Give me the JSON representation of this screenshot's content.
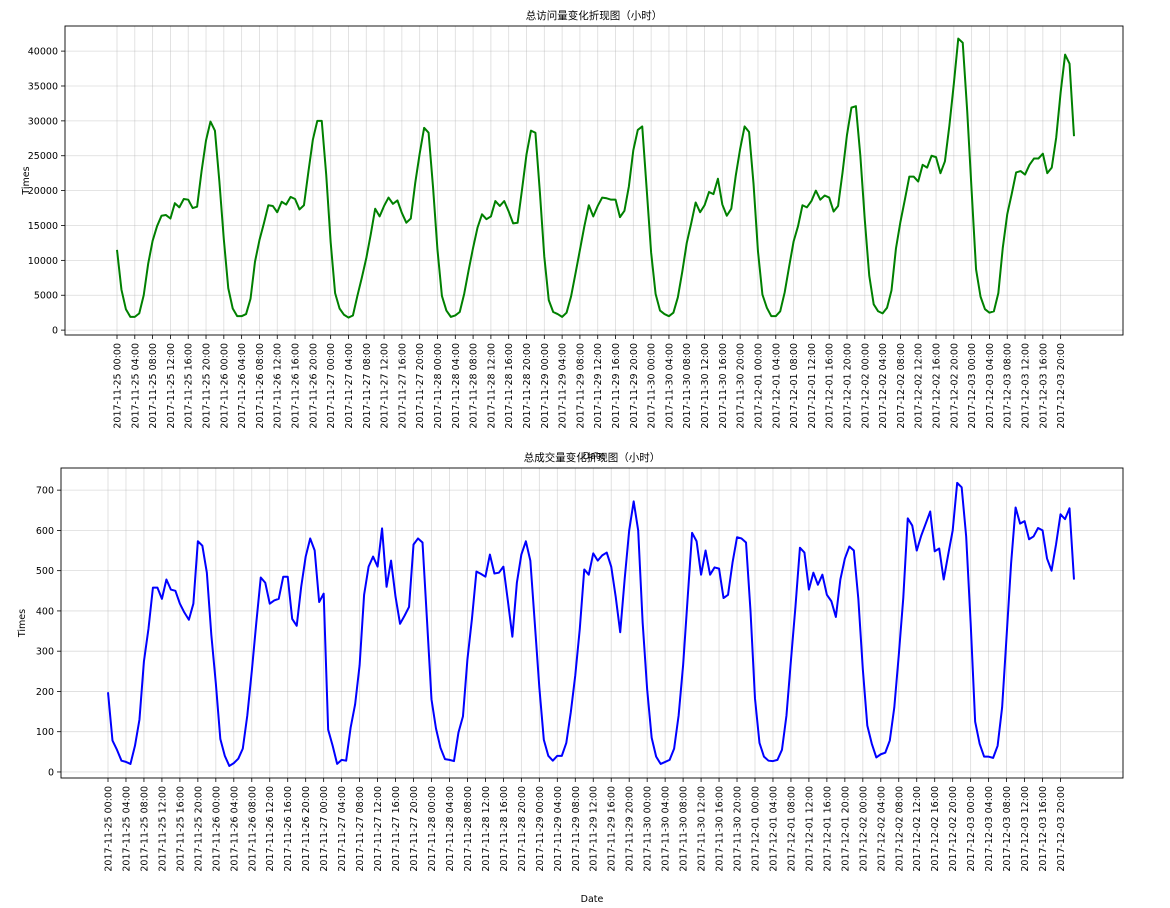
{
  "chart_data": [
    {
      "type": "line",
      "title": "总访问量变化折现图（小时）",
      "xlabel": "Date",
      "ylabel": "Times",
      "ylim": [
        -700,
        43600
      ],
      "yticks": [
        0,
        5000,
        10000,
        15000,
        20000,
        25000,
        30000,
        35000,
        40000
      ],
      "grid": true,
      "line_color": "#008000",
      "xtick_labels": [
        "2017-11-25 00:00",
        "2017-11-25 04:00",
        "2017-11-25 08:00",
        "2017-11-25 12:00",
        "2017-11-25 16:00",
        "2017-11-25 20:00",
        "2017-11-26 00:00",
        "2017-11-26 04:00",
        "2017-11-26 08:00",
        "2017-11-26 12:00",
        "2017-11-26 16:00",
        "2017-11-26 20:00",
        "2017-11-27 00:00",
        "2017-11-27 04:00",
        "2017-11-27 08:00",
        "2017-11-27 12:00",
        "2017-11-27 16:00",
        "2017-11-27 20:00",
        "2017-11-28 00:00",
        "2017-11-28 04:00",
        "2017-11-28 08:00",
        "2017-11-28 12:00",
        "2017-11-28 16:00",
        "2017-11-28 20:00",
        "2017-11-29 00:00",
        "2017-11-29 04:00",
        "2017-11-29 08:00",
        "2017-11-29 12:00",
        "2017-11-29 16:00",
        "2017-11-29 20:00",
        "2017-11-30 00:00",
        "2017-11-30 04:00",
        "2017-11-30 08:00",
        "2017-11-30 12:00",
        "2017-11-30 16:00",
        "2017-11-30 20:00",
        "2017-12-01 00:00",
        "2017-12-01 04:00",
        "2017-12-01 08:00",
        "2017-12-01 12:00",
        "2017-12-01 16:00",
        "2017-12-01 20:00",
        "2017-12-02 00:00",
        "2017-12-02 04:00",
        "2017-12-02 08:00",
        "2017-12-02 12:00",
        "2017-12-02 16:00",
        "2017-12-02 20:00",
        "2017-12-03 00:00",
        "2017-12-03 04:00",
        "2017-12-03 08:00",
        "2017-12-03 12:00",
        "2017-12-03 16:00",
        "2017-12-03 20:00"
      ],
      "series": [
        {
          "values": [
            11500,
            5800,
            3000,
            1900,
            1900,
            2400,
            5000,
            9500,
            12800,
            14900,
            16400,
            16500,
            16000,
            18200,
            17600,
            18800,
            18700,
            17500,
            17700,
            22800,
            27200,
            29900,
            28600,
            21300,
            13000,
            6000,
            3100,
            2000,
            2000,
            2300,
            4500,
            9800,
            12900,
            15300,
            17900,
            17800,
            16900,
            18400,
            18000,
            19100,
            18800,
            17300,
            17900,
            22700,
            27300,
            30000,
            30000,
            22300,
            12600,
            5300,
            3100,
            2200,
            1800,
            2100,
            4900,
            7500,
            10300,
            13700,
            17400,
            16300,
            17800,
            19000,
            18100,
            18600,
            16800,
            15400,
            16000,
            21100,
            25300,
            29000,
            28300,
            20500,
            11500,
            4900,
            2800,
            1900,
            2100,
            2600,
            5200,
            8600,
            11800,
            14700,
            16600,
            15900,
            16300,
            18500,
            17800,
            18500,
            17000,
            15300,
            15400,
            20200,
            25200,
            28600,
            28300,
            19800,
            10500,
            4300,
            2600,
            2300,
            1900,
            2500,
            4800,
            8100,
            11500,
            14900,
            17900,
            16300,
            17800,
            19000,
            18900,
            18700,
            18700,
            16200,
            17100,
            20600,
            25800,
            28700,
            29200,
            20200,
            11100,
            5200,
            2800,
            2300,
            2000,
            2500,
            4700,
            8400,
            12500,
            15300,
            18300,
            16900,
            17900,
            19800,
            19500,
            21700,
            18000,
            16400,
            17400,
            22100,
            26000,
            29200,
            28400,
            21000,
            11300,
            5100,
            3200,
            2000,
            2000,
            2700,
            5400,
            9100,
            12700,
            14900,
            17900,
            17600,
            18500,
            20000,
            18700,
            19300,
            19000,
            17000,
            17800,
            22600,
            28000,
            31900,
            32100,
            25000,
            15800,
            7800,
            3700,
            2700,
            2400,
            3200,
            5700,
            11700,
            15500,
            18700,
            22000,
            22000,
            21300,
            23700,
            23300,
            25000,
            24800,
            22500,
            24200,
            29300,
            35300,
            41800,
            41200,
            31500,
            20000,
            8700,
            4800,
            3000,
            2500,
            2700,
            5300,
            11800,
            16600,
            19500,
            22600,
            22800,
            22300,
            23700,
            24600,
            24600,
            25300,
            22500,
            23300,
            27600,
            34100,
            39500,
            38200,
            27800
          ]
        }
      ]
    },
    {
      "type": "line",
      "title": "总成交量变化折现图（小时）",
      "xlabel": "Date",
      "ylabel": "Times",
      "ylim": [
        -15,
        755
      ],
      "yticks": [
        0,
        100,
        200,
        300,
        400,
        500,
        600,
        700
      ],
      "grid": true,
      "line_color": "#0000ff",
      "xtick_labels": [
        "2017-11-25 00:00",
        "2017-11-25 04:00",
        "2017-11-25 08:00",
        "2017-11-25 12:00",
        "2017-11-25 16:00",
        "2017-11-25 20:00",
        "2017-11-26 00:00",
        "2017-11-26 04:00",
        "2017-11-26 08:00",
        "2017-11-26 12:00",
        "2017-11-26 16:00",
        "2017-11-26 20:00",
        "2017-11-27 00:00",
        "2017-11-27 04:00",
        "2017-11-27 08:00",
        "2017-11-27 12:00",
        "2017-11-27 16:00",
        "2017-11-27 20:00",
        "2017-11-28 00:00",
        "2017-11-28 04:00",
        "2017-11-28 08:00",
        "2017-11-28 12:00",
        "2017-11-28 16:00",
        "2017-11-28 20:00",
        "2017-11-29 00:00",
        "2017-11-29 04:00",
        "2017-11-29 08:00",
        "2017-11-29 12:00",
        "2017-11-29 16:00",
        "2017-11-29 20:00",
        "2017-11-30 00:00",
        "2017-11-30 04:00",
        "2017-11-30 08:00",
        "2017-11-30 12:00",
        "2017-11-30 16:00",
        "2017-11-30 20:00",
        "2017-12-01 00:00",
        "2017-12-01 04:00",
        "2017-12-01 08:00",
        "2017-12-01 12:00",
        "2017-12-01 16:00",
        "2017-12-01 20:00",
        "2017-12-02 00:00",
        "2017-12-02 04:00",
        "2017-12-02 08:00",
        "2017-12-02 12:00",
        "2017-12-02 16:00",
        "2017-12-02 20:00",
        "2017-12-03 00:00",
        "2017-12-03 04:00",
        "2017-12-03 08:00",
        "2017-12-03 12:00",
        "2017-12-03 16:00",
        "2017-12-03 20:00"
      ],
      "series": [
        {
          "values": [
            198,
            78,
            55,
            28,
            25,
            20,
            65,
            130,
            275,
            355,
            458,
            458,
            430,
            478,
            453,
            450,
            418,
            396,
            378,
            418,
            573,
            562,
            495,
            340,
            220,
            82,
            40,
            15,
            22,
            33,
            58,
            140,
            250,
            370,
            483,
            470,
            418,
            426,
            430,
            485,
            485,
            380,
            363,
            460,
            535,
            580,
            550,
            422,
            443,
            105,
            65,
            20,
            30,
            28,
            110,
            168,
            265,
            440,
            510,
            535,
            510,
            605,
            460,
            525,
            435,
            368,
            388,
            410,
            565,
            580,
            570,
            377,
            180,
            108,
            60,
            32,
            30,
            27,
            98,
            138,
            280,
            380,
            498,
            492,
            485,
            540,
            493,
            495,
            510,
            425,
            336,
            470,
            540,
            573,
            525,
            368,
            210,
            80,
            40,
            28,
            40,
            40,
            72,
            148,
            240,
            355,
            503,
            490,
            543,
            525,
            538,
            545,
            510,
            435,
            347,
            480,
            600,
            672,
            600,
            370,
            205,
            85,
            38,
            20,
            25,
            30,
            58,
            140,
            265,
            430,
            594,
            573,
            490,
            550,
            490,
            508,
            505,
            432,
            440,
            520,
            583,
            580,
            570,
            400,
            182,
            72,
            38,
            28,
            27,
            30,
            55,
            140,
            277,
            410,
            557,
            545,
            453,
            495,
            465,
            490,
            440,
            424,
            385,
            478,
            530,
            560,
            550,
            430,
            255,
            115,
            70,
            36,
            44,
            48,
            78,
            160,
            290,
            432,
            630,
            612,
            550,
            587,
            617,
            647,
            548,
            555,
            478,
            540,
            600,
            718,
            707,
            585,
            370,
            125,
            70,
            38,
            38,
            35,
            65,
            160,
            338,
            518,
            657,
            617,
            623,
            578,
            585,
            606,
            600,
            530,
            500,
            565,
            640,
            628,
            655,
            478
          ]
        }
      ]
    }
  ]
}
